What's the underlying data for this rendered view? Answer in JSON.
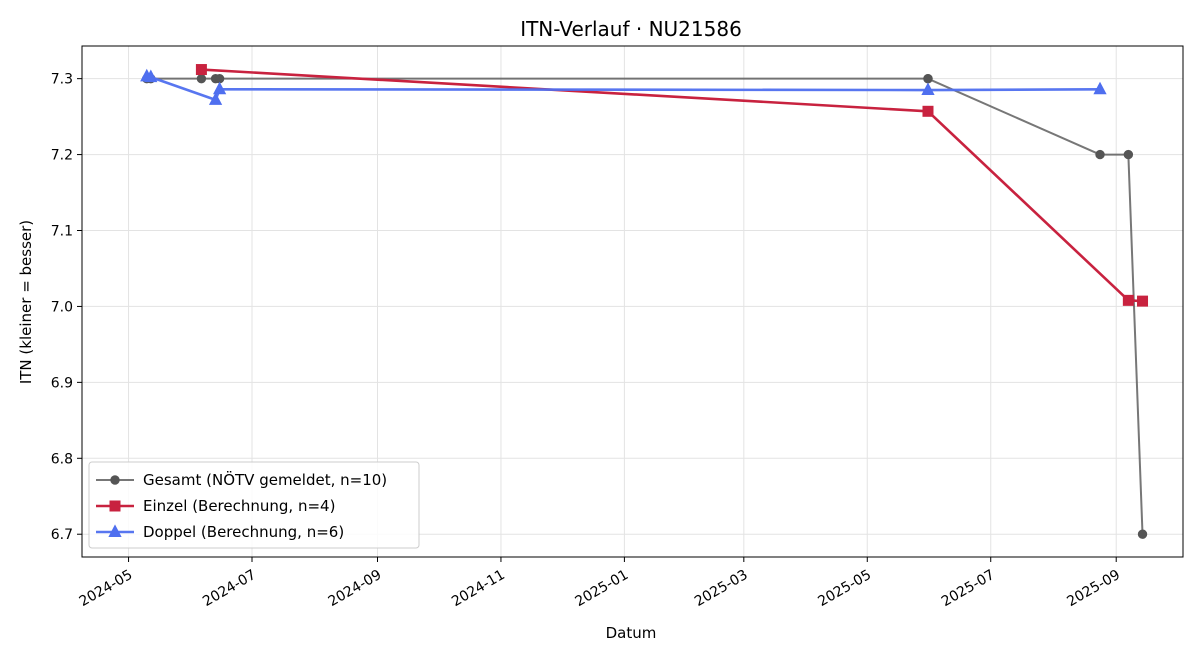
{
  "chart_data": {
    "type": "line",
    "title": "ITN-Verlauf · NU21586",
    "xlabel": "Datum",
    "ylabel": "ITN  (kleiner = besser)",
    "x_type": "date",
    "xlim": [
      "2024-04-08",
      "2025-10-04"
    ],
    "ylim": [
      6.67,
      7.343
    ],
    "x_ticks": [
      "2024-05-01",
      "2024-07-01",
      "2024-09-01",
      "2024-11-01",
      "2025-01-01",
      "2025-03-01",
      "2025-05-01",
      "2025-07-01",
      "2025-09-01"
    ],
    "x_tick_labels": [
      "2024-05",
      "2024-07",
      "2024-09",
      "2024-11",
      "2025-01",
      "2025-03",
      "2025-05",
      "2025-07",
      "2025-09"
    ],
    "y_ticks": [
      6.7,
      6.8,
      6.9,
      7.0,
      7.1,
      7.2,
      7.3
    ],
    "y_tick_labels": [
      "6.7",
      "6.8",
      "6.9",
      "7.0",
      "7.1",
      "7.2",
      "7.3"
    ],
    "grid": true,
    "legend_position": "lower-left",
    "series": [
      {
        "name": "Gesamt (NÖTV gemeldet, n=10)",
        "color": "#555555",
        "marker": "circle",
        "points": [
          {
            "x": "2024-05-10",
            "y": 7.3
          },
          {
            "x": "2024-05-12",
            "y": 7.3
          },
          {
            "x": "2024-06-06",
            "y": 7.3
          },
          {
            "x": "2024-06-13",
            "y": 7.3
          },
          {
            "x": "2024-06-15",
            "y": 7.3
          },
          {
            "x": "2025-05-31",
            "y": 7.3
          },
          {
            "x": "2025-05-31",
            "y": 7.3
          },
          {
            "x": "2025-08-24",
            "y": 7.2
          },
          {
            "x": "2025-09-07",
            "y": 7.2
          },
          {
            "x": "2025-09-14",
            "y": 6.7
          }
        ]
      },
      {
        "name": "Einzel (Berechnung, n=4)",
        "color": "#c8223f",
        "marker": "square",
        "points": [
          {
            "x": "2024-06-06",
            "y": 7.312
          },
          {
            "x": "2025-05-31",
            "y": 7.257
          },
          {
            "x": "2025-09-07",
            "y": 7.008
          },
          {
            "x": "2025-09-14",
            "y": 7.007
          }
        ]
      },
      {
        "name": "Doppel (Berechnung, n=6)",
        "color": "#4f6fef",
        "marker": "triangle",
        "points": [
          {
            "x": "2024-05-10",
            "y": 7.303
          },
          {
            "x": "2024-05-12",
            "y": 7.302
          },
          {
            "x": "2024-06-13",
            "y": 7.272
          },
          {
            "x": "2024-06-15",
            "y": 7.286
          },
          {
            "x": "2025-05-31",
            "y": 7.285
          },
          {
            "x": "2025-08-24",
            "y": 7.286
          }
        ]
      }
    ]
  }
}
